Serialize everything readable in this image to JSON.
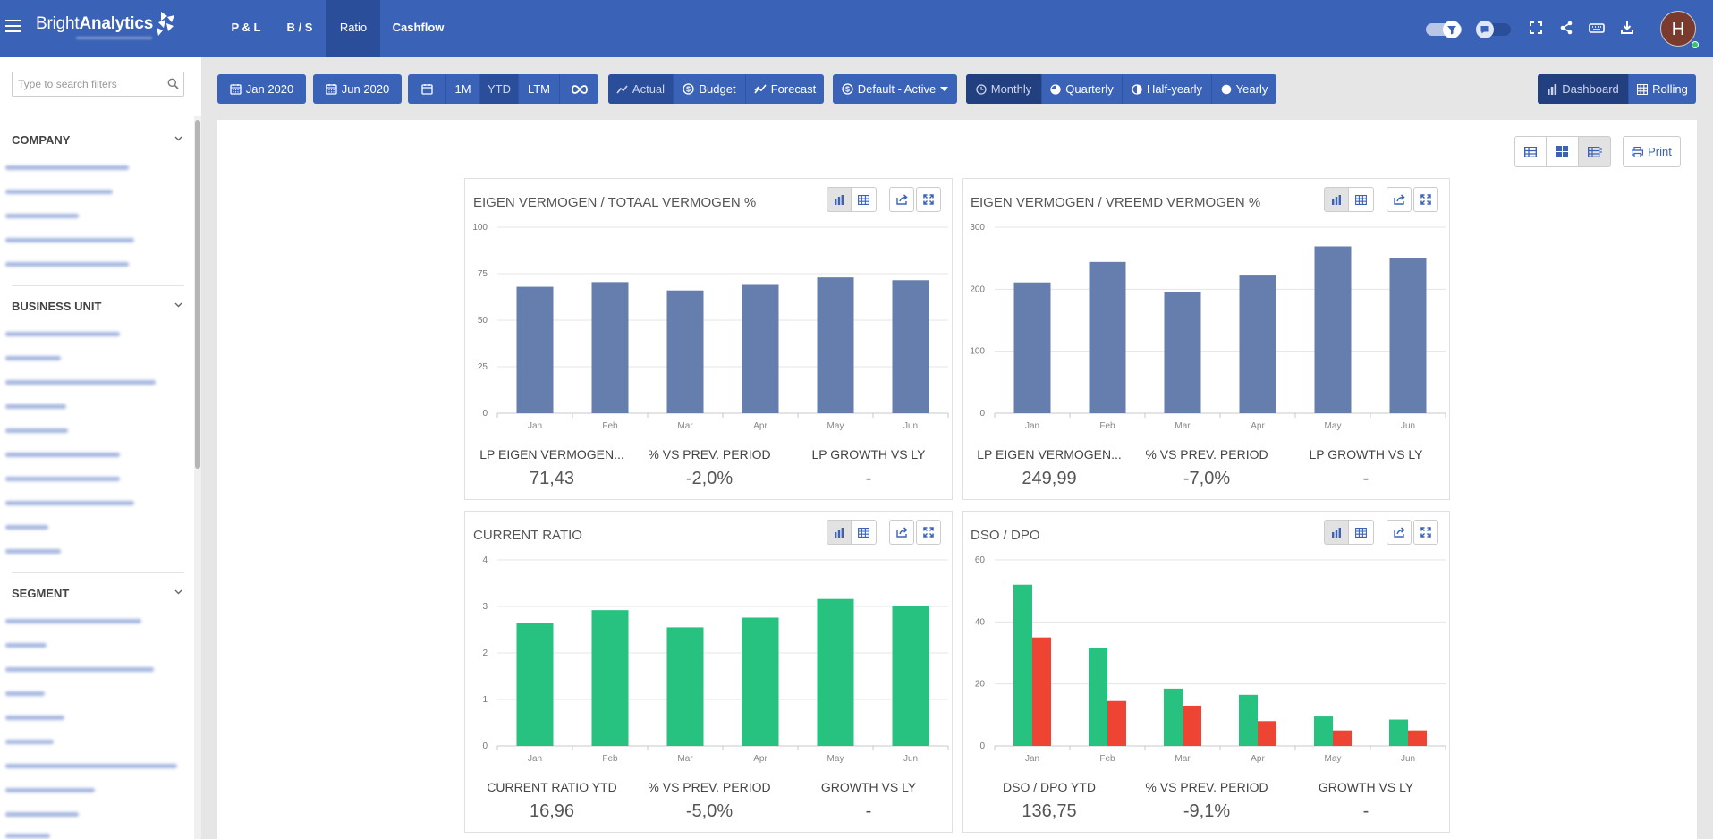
{
  "app": {
    "brand_light": "Bright",
    "brand_bold": "Analytics"
  },
  "nav": {
    "tabs": [
      {
        "label": "P & L"
      },
      {
        "label": "B / S"
      },
      {
        "label": "Ratio"
      },
      {
        "label": "Cashflow"
      }
    ]
  },
  "user": {
    "initial": "H"
  },
  "sidebar": {
    "search_placeholder": "Type to search filters",
    "sections": [
      {
        "title": "COMPANY"
      },
      {
        "title": "BUSINESS UNIT"
      },
      {
        "title": "SEGMENT"
      }
    ]
  },
  "toolbar": {
    "date_from": "Jan 2020",
    "date_to": "Jun 2020",
    "periods": [
      "1M",
      "YTD",
      "LTM"
    ],
    "scenarios": [
      "Actual",
      "Budget",
      "Forecast"
    ],
    "view_select": "Default - Active",
    "granularity": [
      "Monthly",
      "Quarterly",
      "Half-yearly",
      "Yearly"
    ],
    "modes": [
      "Dashboard",
      "Rolling"
    ],
    "print": "Print"
  },
  "colors": {
    "primary": "#3a63b8",
    "bar_blue": "#667eae",
    "bar_green": "#27c27f",
    "bar_red": "#ee4434"
  },
  "cards": [
    {
      "title": "EIGEN VERMOGEN / TOTAAL VERMOGEN %",
      "kpis": [
        {
          "label": "LP EIGEN VERMOGEN...",
          "value": "71,43"
        },
        {
          "label": "% VS PREV. PERIOD",
          "value": "-2,0%"
        },
        {
          "label": "LP GROWTH VS LY",
          "value": "-"
        }
      ]
    },
    {
      "title": "EIGEN VERMOGEN / VREEMD VERMOGEN %",
      "kpis": [
        {
          "label": "LP EIGEN VERMOGEN...",
          "value": "249,99"
        },
        {
          "label": "% VS PREV. PERIOD",
          "value": "-7,0%"
        },
        {
          "label": "LP GROWTH VS LY",
          "value": "-"
        }
      ]
    },
    {
      "title": "CURRENT RATIO",
      "kpis": [
        {
          "label": "CURRENT RATIO YTD",
          "value": "16,96"
        },
        {
          "label": "% VS PREV. PERIOD",
          "value": "-5,0%"
        },
        {
          "label": "GROWTH VS LY",
          "value": "-"
        }
      ]
    },
    {
      "title": "DSO / DPO",
      "kpis": [
        {
          "label": "DSO / DPO YTD",
          "value": "136,75"
        },
        {
          "label": "% VS PREV. PERIOD",
          "value": "-9,1%"
        },
        {
          "label": "GROWTH VS LY",
          "value": "-"
        }
      ]
    }
  ],
  "chart_data": [
    {
      "type": "bar",
      "categories": [
        "Jan",
        "Feb",
        "Mar",
        "Apr",
        "May",
        "Jun"
      ],
      "series": [
        {
          "values": [
            68,
            70.5,
            66,
            69,
            73,
            71.5
          ]
        }
      ],
      "ylim": [
        0,
        100
      ],
      "yticks": [
        0,
        25,
        50,
        75,
        100
      ],
      "grid": true
    },
    {
      "type": "bar",
      "categories": [
        "Jan",
        "Feb",
        "Mar",
        "Apr",
        "May",
        "Jun"
      ],
      "series": [
        {
          "values": [
            211,
            244,
            195,
            222,
            269,
            250
          ]
        }
      ],
      "ylim": [
        0,
        300
      ],
      "yticks": [
        0,
        100,
        200,
        300
      ],
      "grid": true
    },
    {
      "type": "bar",
      "categories": [
        "Jan",
        "Feb",
        "Mar",
        "Apr",
        "May",
        "Jun"
      ],
      "series": [
        {
          "values": [
            2.65,
            2.92,
            2.55,
            2.76,
            3.16,
            3.0
          ]
        }
      ],
      "ylim": [
        0,
        4
      ],
      "yticks": [
        0,
        1,
        2,
        3,
        4
      ],
      "grid": true
    },
    {
      "type": "bar",
      "categories": [
        "Jan",
        "Feb",
        "Mar",
        "Apr",
        "May",
        "Jun"
      ],
      "series": [
        {
          "values": [
            52,
            31.5,
            18.5,
            16.5,
            9.5,
            8.5
          ]
        },
        {
          "values": [
            35,
            14.5,
            13,
            8,
            5,
            5
          ]
        }
      ],
      "ylim": [
        0,
        60
      ],
      "yticks": [
        0,
        20,
        40,
        60
      ],
      "grid": true
    }
  ]
}
